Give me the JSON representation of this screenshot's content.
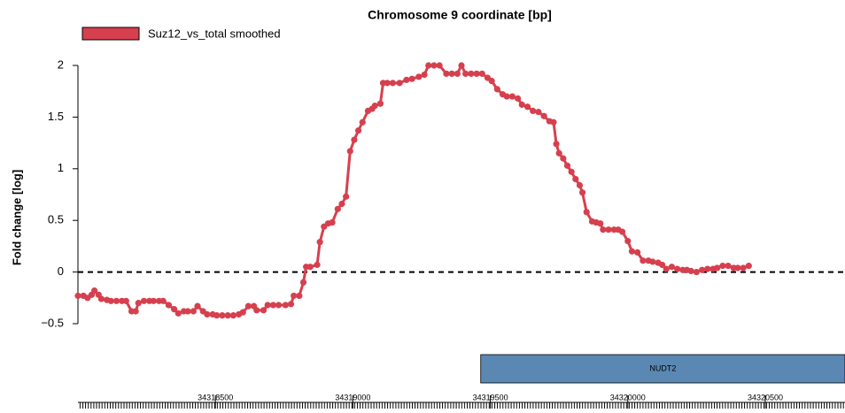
{
  "chart_data": {
    "type": "line",
    "title": "Chromosome 9 coordinate [bp]",
    "ylabel": "Fold change [log]",
    "x": [
      34318000,
      34318020,
      34318035,
      34318050,
      34318060,
      34318075,
      34318085,
      34318105,
      34318120,
      34318140,
      34318160,
      34318175,
      34318195,
      34318210,
      34318220,
      34318240,
      34318260,
      34318275,
      34318295,
      34318310,
      34318330,
      34318350,
      34318365,
      34318385,
      34318400,
      34318420,
      34318435,
      34318455,
      34318470,
      34318490,
      34318505,
      34318525,
      34318545,
      34318565,
      34318585,
      34318600,
      34318620,
      34318640,
      34318650,
      34318675,
      34318690,
      34318710,
      34318730,
      34318755,
      34318775,
      34318785,
      34318805,
      34318820,
      34318830,
      34318845,
      34318870,
      34318880,
      34318895,
      34318910,
      34318925,
      34318945,
      34318960,
      34318975,
      34318990,
      34319005,
      34319020,
      34319035,
      34319055,
      34319070,
      34319080,
      34319100,
      34319110,
      34319125,
      34319145,
      34319170,
      34319195,
      34319215,
      34319240,
      34319260,
      34319275,
      34319295,
      34319315,
      34319340,
      34319360,
      34319380,
      34319395,
      34319410,
      34319430,
      34319450,
      34319470,
      34319490,
      34319505,
      34319525,
      34319545,
      34319560,
      34319580,
      34319600,
      34319615,
      34319635,
      34319655,
      34319675,
      34319695,
      34319715,
      34319730,
      34319740,
      34319750,
      34319765,
      34319780,
      34319795,
      34319810,
      34319825,
      34319835,
      34319850,
      34319870,
      34319885,
      34319900,
      34319910,
      34319930,
      34319950,
      34319965,
      34319980,
      34320000,
      34320015,
      34320035,
      34320055,
      34320075,
      34320090,
      34320110,
      34320125,
      34320140,
      34320160,
      34320180,
      34320200,
      34320215,
      34320230,
      34320250,
      34320270,
      34320290,
      34320310,
      34320325,
      34320345,
      34320365,
      34320385,
      34320400,
      34320420,
      34320440
    ],
    "series": [
      {
        "name": "Suz12_vs_total smoothed",
        "color": "#d6404e",
        "values": [
          -0.23,
          -0.23,
          -0.25,
          -0.22,
          -0.18,
          -0.22,
          -0.26,
          -0.27,
          -0.28,
          -0.28,
          -0.28,
          -0.28,
          -0.38,
          -0.38,
          -0.3,
          -0.28,
          -0.28,
          -0.28,
          -0.28,
          -0.28,
          -0.32,
          -0.36,
          -0.4,
          -0.38,
          -0.38,
          -0.38,
          -0.33,
          -0.38,
          -0.41,
          -0.41,
          -0.42,
          -0.42,
          -0.42,
          -0.42,
          -0.41,
          -0.39,
          -0.33,
          -0.33,
          -0.37,
          -0.37,
          -0.32,
          -0.32,
          -0.32,
          -0.32,
          -0.31,
          -0.23,
          -0.23,
          -0.1,
          0.05,
          0.05,
          0.07,
          0.29,
          0.44,
          0.47,
          0.48,
          0.61,
          0.66,
          0.73,
          1.17,
          1.28,
          1.37,
          1.45,
          1.56,
          1.58,
          1.61,
          1.63,
          1.83,
          1.83,
          1.83,
          1.83,
          1.86,
          1.87,
          1.89,
          1.91,
          2.0,
          2.0,
          2.0,
          1.92,
          1.92,
          1.92,
          2.0,
          1.92,
          1.92,
          1.92,
          1.92,
          1.88,
          1.85,
          1.77,
          1.72,
          1.7,
          1.7,
          1.68,
          1.62,
          1.6,
          1.56,
          1.55,
          1.51,
          1.46,
          1.45,
          1.24,
          1.15,
          1.1,
          1.03,
          0.97,
          0.9,
          0.84,
          0.77,
          0.58,
          0.49,
          0.48,
          0.47,
          0.41,
          0.41,
          0.41,
          0.41,
          0.39,
          0.3,
          0.2,
          0.19,
          0.11,
          0.11,
          0.1,
          0.09,
          0.07,
          0.03,
          0.05,
          0.03,
          0.02,
          0.02,
          0.01,
          0.0,
          0.02,
          0.03,
          0.03,
          0.04,
          0.06,
          0.06,
          0.04,
          0.04,
          0.04,
          0.06
        ]
      }
    ],
    "xlim": [
      34318000,
      34320790
    ],
    "xticks": [
      34318500,
      34319000,
      34319500,
      34320000,
      34320500
    ],
    "ylim": [
      -0.5,
      2
    ],
    "yticks": [
      2,
      1.5,
      1,
      0.5,
      0,
      {
        "value": -0.5,
        "label": "−0.5"
      }
    ],
    "hline": 0,
    "gene": {
      "label": "NUDT2",
      "start": 34319465,
      "end": 34320790,
      "color": "#5b88b3"
    }
  }
}
